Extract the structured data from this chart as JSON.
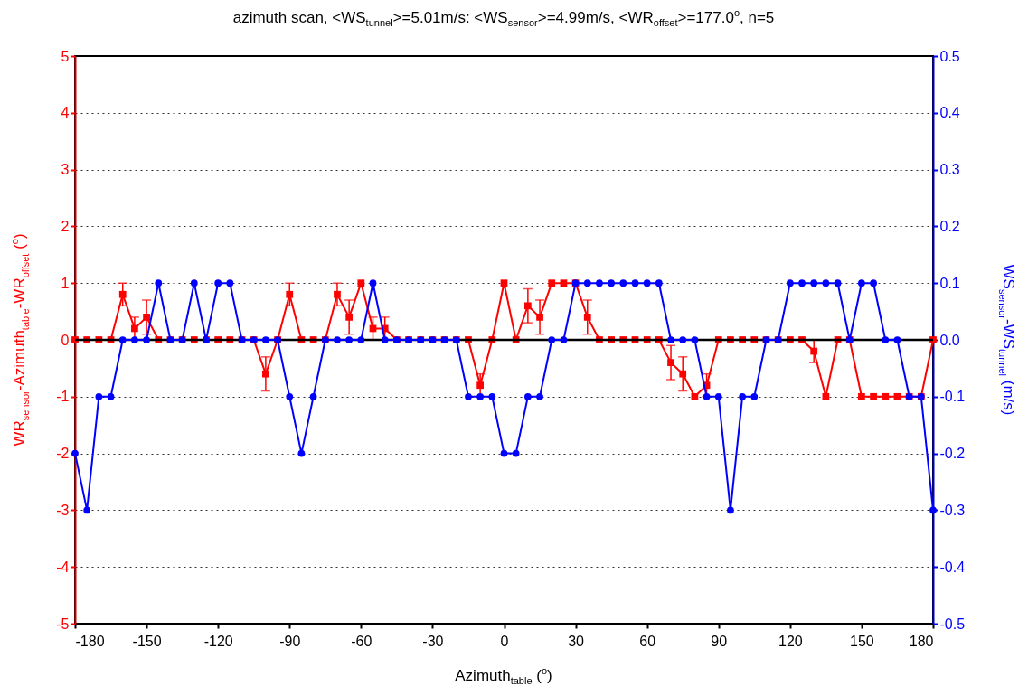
{
  "chart_data": {
    "type": "line",
    "title": "azimuth scan, <WS$_{tunnel}$>=5.01m/s: <WS$_{sensor}$>=4.99m/s, <WR$_{offset}$>=177.0$^{o}$, n=5",
    "xlabel": "Azimuth$_{table}$ ($^{o}$)",
    "ylabel": "WR$_{sensor}$-Azimuth$_{table}$-WR$_{offset}$ ($^{o}$)",
    "y2label": "WS$_{sensor}$-WS$_{tunnel}$ (m/s)",
    "x": [
      -180,
      -175,
      -170,
      -165,
      -160,
      -155,
      -150,
      -145,
      -140,
      -135,
      -130,
      -125,
      -120,
      -115,
      -110,
      -105,
      -100,
      -95,
      -90,
      -85,
      -80,
      -75,
      -70,
      -65,
      -60,
      -55,
      -50,
      -45,
      -40,
      -35,
      -30,
      -25,
      -20,
      -15,
      -10,
      -5,
      0,
      5,
      10,
      15,
      20,
      25,
      30,
      35,
      40,
      45,
      50,
      55,
      60,
      65,
      70,
      75,
      80,
      85,
      90,
      95,
      100,
      105,
      110,
      115,
      120,
      125,
      130,
      135,
      140,
      145,
      150,
      155,
      160,
      165,
      170,
      175,
      180
    ],
    "series": [
      {
        "color": "#ff0000",
        "marker": "square",
        "values": [
          0,
          0,
          0,
          0,
          0.8,
          0.2,
          0.4,
          0,
          0,
          0,
          0,
          0,
          0,
          0,
          0,
          0,
          -0.6,
          0,
          0.8,
          0,
          0,
          0,
          0.8,
          0.4,
          1,
          0.2,
          0.2,
          0,
          0,
          0,
          0,
          0,
          0,
          0,
          -0.8,
          0,
          1,
          0,
          0.6,
          0.4,
          1,
          1,
          1,
          0.4,
          0,
          0,
          0,
          0,
          0,
          0,
          -0.4,
          -0.6,
          -1,
          -0.8,
          0,
          0,
          0,
          0,
          0,
          0,
          0,
          0,
          -0.2,
          -1,
          0,
          0,
          -1,
          -1,
          -1,
          -1,
          -1,
          -1,
          0
        ],
        "errors": [
          null,
          null,
          null,
          null,
          0.2,
          0.2,
          0.3,
          null,
          null,
          null,
          null,
          null,
          null,
          null,
          null,
          null,
          0.3,
          null,
          0.2,
          null,
          null,
          null,
          0.2,
          0.3,
          null,
          0.2,
          0.2,
          null,
          null,
          null,
          null,
          null,
          null,
          null,
          0.2,
          null,
          null,
          null,
          0.3,
          0.3,
          null,
          null,
          null,
          0.3,
          null,
          null,
          null,
          null,
          null,
          null,
          0.3,
          0.3,
          null,
          0.2,
          null,
          null,
          null,
          null,
          null,
          null,
          null,
          null,
          0.2,
          null,
          null,
          null,
          null,
          null,
          null,
          null,
          null,
          null,
          null
        ]
      },
      {
        "color": "#0000ff",
        "marker": "circle",
        "axis": "y2",
        "values": [
          -0.2,
          -0.3,
          -0.1,
          -0.1,
          0,
          0,
          0,
          0.1,
          0,
          0,
          0.1,
          0,
          0.1,
          0.1,
          0,
          0,
          0,
          0,
          -0.1,
          -0.2,
          -0.1,
          0,
          0,
          0,
          0,
          0.1,
          0,
          0,
          0,
          0,
          0,
          0,
          0,
          -0.1,
          -0.1,
          -0.1,
          -0.2,
          -0.2,
          -0.1,
          -0.1,
          0,
          0,
          0.1,
          0.1,
          0.1,
          0.1,
          0.1,
          0.1,
          0.1,
          0.1,
          0,
          0,
          0,
          -0.1,
          -0.1,
          -0.3,
          -0.1,
          -0.1,
          0,
          0,
          0.1,
          0.1,
          0.1,
          0.1,
          0.1,
          0,
          0.1,
          0.1,
          0,
          0,
          -0.1,
          -0.1,
          -0.3
        ]
      }
    ],
    "xlim": [
      -180,
      180
    ],
    "xticks": [
      -180,
      -150,
      -120,
      -90,
      -60,
      -30,
      0,
      30,
      60,
      90,
      120,
      150,
      180
    ],
    "ylim": [
      -5,
      5
    ],
    "yticks": [
      -5,
      -4,
      -3,
      -2,
      -1,
      0,
      1,
      2,
      3,
      4,
      5
    ],
    "y2lim": [
      -0.5,
      0.5
    ],
    "y2ticks": [
      -0.5,
      -0.4,
      -0.3,
      -0.2,
      -0.1,
      {
        "value": 0,
        "label": "0.0"
      },
      0.1,
      0.2,
      0.3,
      0.4,
      0.5
    ],
    "ref_lines": [
      {
        "axis": "y",
        "value": 0,
        "color": "#000000"
      }
    ],
    "grid": "y"
  }
}
